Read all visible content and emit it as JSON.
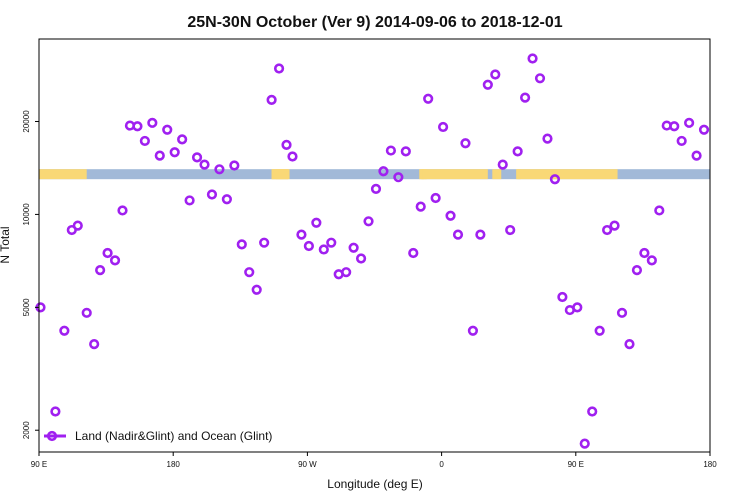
{
  "chart_data": {
    "type": "scatter",
    "title": "25N-30N October (Ver 9)   2014-09-06 to 2018-12-01",
    "xlabel": "Longitude (deg E)",
    "ylabel": "N Total",
    "x_ticks": [
      {
        "value": 90,
        "label": "90 E"
      },
      {
        "value": 180,
        "label": "180"
      },
      {
        "value": 270,
        "label": "90 W"
      },
      {
        "value": 360,
        "label": "0"
      },
      {
        "value": 450,
        "label": "90 E"
      },
      {
        "value": 540,
        "label": "180"
      }
    ],
    "xlim": [
      90,
      540
    ],
    "y_scale": "log",
    "ylim": [
      1700,
      37000
    ],
    "y_ticks": [
      {
        "value": 2000,
        "label": "2000"
      },
      {
        "value": 5000,
        "label": "5000"
      },
      {
        "value": 10000,
        "label": "10000"
      },
      {
        "value": 20000,
        "label": "20000"
      }
    ],
    "grid": false,
    "legend": {
      "position": "bottom-left",
      "entries": [
        "Land (Nadir&Glint) and Ocean (Glint)"
      ]
    },
    "marker_color": "#a020f0",
    "surface_band": {
      "value": 13500,
      "land_color": "#f9d876",
      "ocean_color": "#a2b9d8",
      "land_ranges": [
        [
          90,
          122
        ],
        [
          246,
          257
        ],
        [
          246,
          257
        ],
        [
          249,
          258
        ],
        [
          345,
          350
        ],
        [
          346,
          348
        ],
        [
          347,
          391
        ],
        [
          394,
          400
        ],
        [
          410,
          413
        ],
        [
          411,
          478
        ]
      ]
    },
    "series": [
      {
        "name": "Land (Nadir&Glint) and Ocean (Glint)",
        "x": [
          91,
          101,
          107,
          112,
          116,
          122,
          127,
          131,
          136,
          141,
          146,
          151,
          156,
          161,
          166,
          171,
          176,
          181,
          186,
          191,
          196,
          201,
          206,
          211,
          216,
          221,
          226,
          231,
          236,
          241,
          246,
          251,
          256,
          260,
          266,
          271,
          276,
          281,
          286,
          291,
          296,
          301,
          306,
          311,
          316,
          321,
          326,
          331,
          336,
          341,
          346,
          351,
          356,
          361,
          366,
          371,
          376,
          381,
          386,
          391,
          396,
          401,
          406,
          411,
          416,
          421,
          426,
          431,
          436,
          441,
          446,
          451,
          456,
          461,
          466,
          471,
          476,
          481,
          486,
          491,
          496,
          501,
          506,
          511,
          516,
          521,
          526,
          531,
          536
        ],
        "y": [
          5000,
          2300,
          4200,
          8900,
          9200,
          4800,
          3800,
          6600,
          7500,
          7100,
          10300,
          19400,
          19300,
          17300,
          19800,
          15500,
          18800,
          15900,
          17500,
          11100,
          15300,
          14500,
          11600,
          14000,
          11200,
          14400,
          8000,
          6500,
          5700,
          8100,
          23500,
          29700,
          16800,
          15400,
          8600,
          7900,
          9400,
          7700,
          8100,
          6400,
          6500,
          7800,
          7200,
          9500,
          12100,
          13800,
          16100,
          13200,
          16000,
          7500,
          10600,
          23700,
          11300,
          19200,
          9900,
          8600,
          17000,
          4200,
          8600,
          26300,
          28400,
          14500,
          8900,
          16000,
          23900,
          32000,
          27600,
          17600,
          13000,
          5400,
          4900,
          5000,
          1810,
          2300,
          4200,
          8900,
          9200,
          4800,
          3800,
          6600,
          7500,
          7100,
          10300,
          19400,
          19300,
          17300,
          19800,
          15500,
          18800
        ]
      }
    ]
  }
}
